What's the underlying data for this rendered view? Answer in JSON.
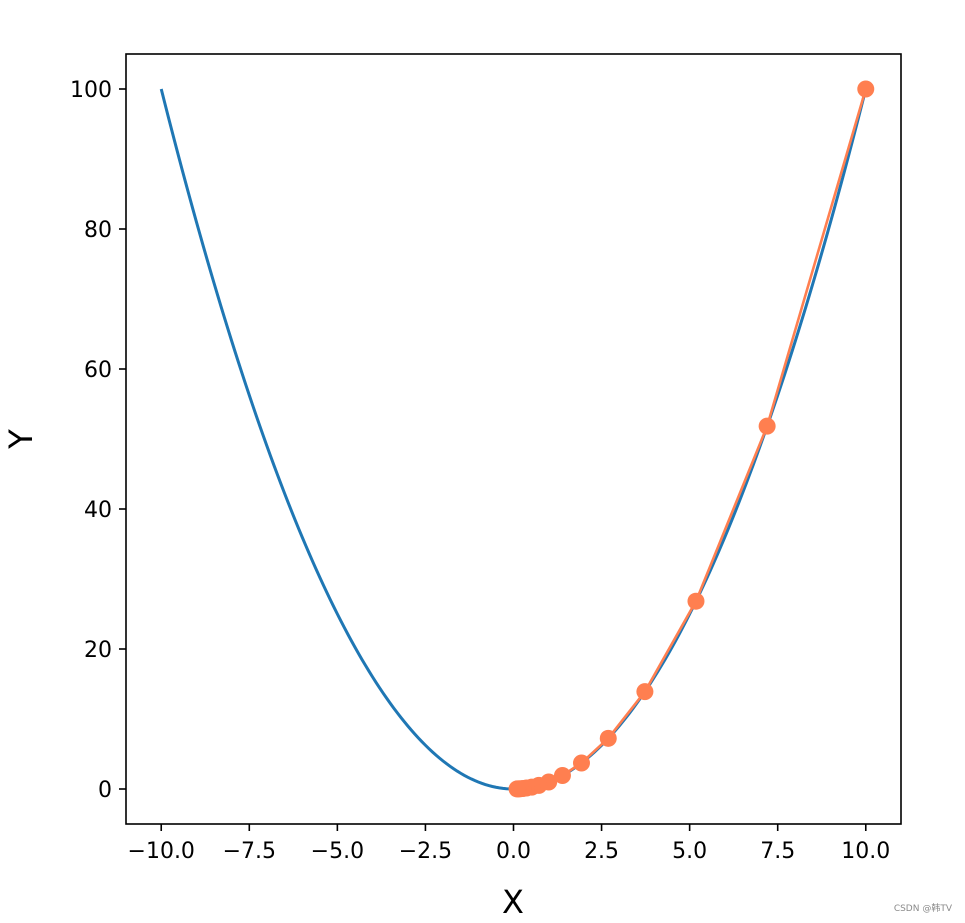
{
  "chart_data": {
    "type": "line",
    "xlabel": "X",
    "ylabel": "Y",
    "xlim": [
      -11,
      11
    ],
    "ylim": [
      -5,
      105
    ],
    "x_ticks": [
      -10.0,
      -7.5,
      -5.0,
      -2.5,
      0.0,
      2.5,
      5.0,
      7.5,
      10.0
    ],
    "x_tick_labels": [
      "−10.0",
      "−7.5",
      "−5.0",
      "−2.5",
      "0.0",
      "2.5",
      "5.0",
      "7.5",
      "10.0"
    ],
    "y_ticks": [
      0,
      20,
      40,
      60,
      80,
      100
    ],
    "y_tick_labels": [
      "0",
      "20",
      "40",
      "60",
      "80",
      "100"
    ],
    "grid": false,
    "series": [
      {
        "kind": "curve",
        "function": "y = x^2",
        "x_range": [
          -10,
          10
        ],
        "color": "#1f77b4"
      },
      {
        "kind": "line-with-markers",
        "color": "#ff7f50",
        "x": [
          10.0,
          7.2,
          5.18,
          3.73,
          2.69,
          1.93,
          1.39,
          1.0,
          0.72,
          0.52,
          0.37,
          0.27,
          0.19,
          0.14,
          0.1
        ],
        "y": [
          100.0,
          51.84,
          26.83,
          13.91,
          7.24,
          3.72,
          1.93,
          1.0,
          0.52,
          0.27,
          0.14,
          0.07,
          0.04,
          0.02,
          0.01
        ]
      }
    ]
  },
  "watermark": "CSDN @韩TV"
}
